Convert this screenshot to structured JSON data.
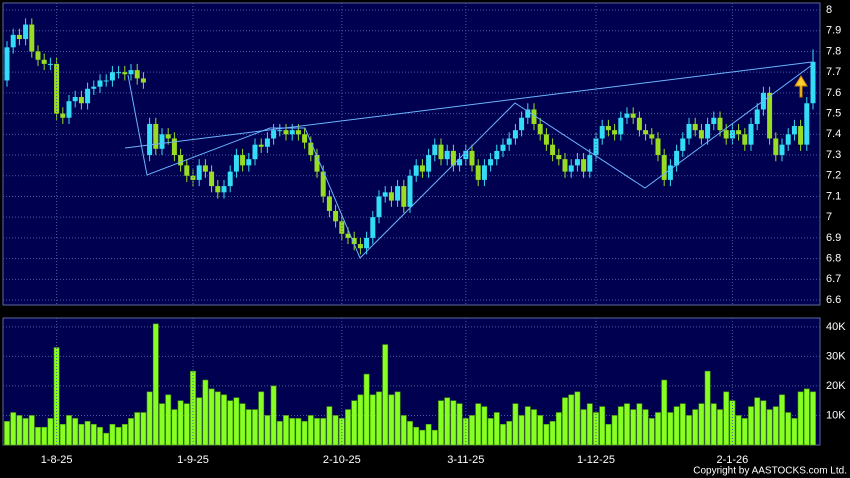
{
  "chart_data": [
    {
      "type": "candlestick",
      "categories": [
        null,
        null,
        null,
        null,
        null,
        null,
        null,
        null,
        "1-8-25",
        null,
        null,
        null,
        null,
        null,
        null,
        null,
        null,
        null,
        null,
        null,
        null,
        null,
        null,
        null,
        null,
        null,
        null,
        null,
        null,
        null,
        "1-9-25",
        null,
        null,
        null,
        null,
        null,
        null,
        null,
        null,
        null,
        null,
        null,
        null,
        null,
        null,
        null,
        null,
        null,
        null,
        null,
        null,
        null,
        null,
        null,
        "2-10-25",
        null,
        null,
        null,
        null,
        null,
        null,
        null,
        null,
        null,
        null,
        null,
        null,
        null,
        null,
        null,
        null,
        null,
        null,
        null,
        "3-11-25",
        null,
        null,
        null,
        null,
        null,
        null,
        null,
        null,
        null,
        null,
        null,
        null,
        null,
        null,
        null,
        null,
        null,
        null,
        null,
        null,
        "1-12-25",
        null,
        null,
        null,
        null,
        null,
        null,
        null,
        null,
        null,
        null,
        null,
        null,
        null,
        null,
        null,
        null,
        null,
        null,
        null,
        null,
        null,
        "2-1-26",
        null,
        null,
        null,
        null,
        null,
        null,
        null,
        null,
        null,
        null,
        null,
        null,
        null
      ],
      "open": [
        7.66,
        7.82,
        7.88,
        7.86,
        7.93,
        7.8,
        7.76,
        7.74,
        7.74,
        7.5,
        7.48,
        7.56,
        7.58,
        7.55,
        7.62,
        7.63,
        7.66,
        7.66,
        7.7,
        7.7,
        7.69,
        7.71,
        7.67,
        7.3,
        7.45,
        7.33,
        7.4,
        7.38,
        7.3,
        7.25,
        7.2,
        7.18,
        7.25,
        7.22,
        7.15,
        7.12,
        7.15,
        7.22,
        7.3,
        7.25,
        7.28,
        7.35,
        7.34,
        7.38,
        7.42,
        7.42,
        7.4,
        7.42,
        7.4,
        7.36,
        7.3,
        7.22,
        7.1,
        7.03,
        6.98,
        6.92,
        6.9,
        6.87,
        6.85,
        6.9,
        7.0,
        7.1,
        7.12,
        7.08,
        7.15,
        7.05,
        7.2,
        7.25,
        7.22,
        7.3,
        7.35,
        7.28,
        7.32,
        7.25,
        7.28,
        7.32,
        7.25,
        7.18,
        7.25,
        7.28,
        7.32,
        7.35,
        7.38,
        7.42,
        7.48,
        7.52,
        7.45,
        7.4,
        7.35,
        7.3,
        7.28,
        7.22,
        7.25,
        7.28,
        7.22,
        7.3,
        7.38,
        7.44,
        7.42,
        7.4,
        7.48,
        7.5,
        7.48,
        7.42,
        7.4,
        7.38,
        7.3,
        7.18,
        7.25,
        7.32,
        7.38,
        7.45,
        7.42,
        7.38,
        7.45,
        7.48,
        7.42,
        7.38,
        7.42,
        7.4,
        7.35,
        7.45,
        7.52,
        7.6,
        7.38,
        7.3,
        7.35,
        7.4,
        7.44,
        7.35,
        7.55
      ],
      "high": [
        7.85,
        7.91,
        7.91,
        7.96,
        7.96,
        7.83,
        7.79,
        7.77,
        7.77,
        7.53,
        7.59,
        7.61,
        7.61,
        7.65,
        7.66,
        7.69,
        7.69,
        7.73,
        7.73,
        7.73,
        7.74,
        7.74,
        7.7,
        7.48,
        7.48,
        7.43,
        7.43,
        7.41,
        7.33,
        7.28,
        7.23,
        7.28,
        7.28,
        7.25,
        7.18,
        7.18,
        7.25,
        7.33,
        7.33,
        7.31,
        7.38,
        7.38,
        7.41,
        7.45,
        7.45,
        7.45,
        7.45,
        7.45,
        7.43,
        7.39,
        7.33,
        7.25,
        7.13,
        7.06,
        7.01,
        6.95,
        6.93,
        6.9,
        6.93,
        7.03,
        7.13,
        7.15,
        7.15,
        7.18,
        7.18,
        7.23,
        7.28,
        7.28,
        7.33,
        7.38,
        7.38,
        7.35,
        7.35,
        7.31,
        7.35,
        7.35,
        7.28,
        7.28,
        7.31,
        7.35,
        7.38,
        7.41,
        7.45,
        7.51,
        7.55,
        7.55,
        7.48,
        7.43,
        7.38,
        7.33,
        7.31,
        7.28,
        7.31,
        7.31,
        7.33,
        7.41,
        7.47,
        7.47,
        7.45,
        7.51,
        7.53,
        7.53,
        7.51,
        7.45,
        7.43,
        7.41,
        7.33,
        7.28,
        7.35,
        7.41,
        7.48,
        7.48,
        7.45,
        7.48,
        7.51,
        7.51,
        7.45,
        7.45,
        7.45,
        7.43,
        7.48,
        7.55,
        7.63,
        7.63,
        7.41,
        7.38,
        7.43,
        7.47,
        7.47,
        7.58,
        7.81
      ],
      "low": [
        7.63,
        7.79,
        7.83,
        7.83,
        7.77,
        7.73,
        7.71,
        7.71,
        7.47,
        7.45,
        7.45,
        7.53,
        7.52,
        7.52,
        7.59,
        7.6,
        7.63,
        7.63,
        7.67,
        7.66,
        7.66,
        7.64,
        7.62,
        7.27,
        7.3,
        7.3,
        7.35,
        7.27,
        7.22,
        7.17,
        7.15,
        7.15,
        7.19,
        7.12,
        7.09,
        7.09,
        7.12,
        7.19,
        7.22,
        7.22,
        7.25,
        7.31,
        7.31,
        7.35,
        7.39,
        7.37,
        7.37,
        7.37,
        7.33,
        7.27,
        7.19,
        7.07,
        7.0,
        6.95,
        6.89,
        6.87,
        6.84,
        6.82,
        6.82,
        6.87,
        6.97,
        7.07,
        7.05,
        7.05,
        7.02,
        7.02,
        7.17,
        7.19,
        7.19,
        7.27,
        7.25,
        7.25,
        7.22,
        7.22,
        7.25,
        7.22,
        7.15,
        7.15,
        7.22,
        7.25,
        7.29,
        7.32,
        7.35,
        7.39,
        7.45,
        7.42,
        7.37,
        7.32,
        7.27,
        7.25,
        7.19,
        7.19,
        7.22,
        7.19,
        7.19,
        7.27,
        7.35,
        7.39,
        7.37,
        7.37,
        7.45,
        7.45,
        7.39,
        7.37,
        7.35,
        7.27,
        7.15,
        7.15,
        7.22,
        7.29,
        7.35,
        7.39,
        7.35,
        7.35,
        7.42,
        7.39,
        7.35,
        7.35,
        7.37,
        7.32,
        7.32,
        7.42,
        7.49,
        7.35,
        7.27,
        7.27,
        7.32,
        7.37,
        7.32,
        7.32,
        7.52
      ],
      "close": [
        7.82,
        7.88,
        7.86,
        7.93,
        7.8,
        7.76,
        7.74,
        7.74,
        7.5,
        7.48,
        7.56,
        7.58,
        7.55,
        7.62,
        7.63,
        7.66,
        7.66,
        7.7,
        7.7,
        7.69,
        7.71,
        7.67,
        7.65,
        7.45,
        7.33,
        7.4,
        7.38,
        7.3,
        7.25,
        7.2,
        7.18,
        7.25,
        7.22,
        7.15,
        7.12,
        7.15,
        7.22,
        7.3,
        7.25,
        7.28,
        7.35,
        7.34,
        7.38,
        7.42,
        7.42,
        7.4,
        7.42,
        7.4,
        7.36,
        7.3,
        7.22,
        7.1,
        7.03,
        6.98,
        6.92,
        6.9,
        6.87,
        6.85,
        6.9,
        7.0,
        7.1,
        7.12,
        7.08,
        7.15,
        7.05,
        7.2,
        7.25,
        7.22,
        7.3,
        7.35,
        7.28,
        7.32,
        7.25,
        7.28,
        7.32,
        7.25,
        7.18,
        7.25,
        7.28,
        7.32,
        7.35,
        7.38,
        7.42,
        7.48,
        7.52,
        7.45,
        7.4,
        7.35,
        7.3,
        7.28,
        7.22,
        7.25,
        7.28,
        7.22,
        7.3,
        7.38,
        7.44,
        7.42,
        7.4,
        7.48,
        7.5,
        7.48,
        7.42,
        7.4,
        7.38,
        7.3,
        7.18,
        7.25,
        7.32,
        7.38,
        7.45,
        7.42,
        7.38,
        7.45,
        7.48,
        7.42,
        7.38,
        7.42,
        7.4,
        7.35,
        7.45,
        7.52,
        7.6,
        7.38,
        7.3,
        7.35,
        7.4,
        7.44,
        7.35,
        7.55,
        7.75
      ],
      "up_color": "#33ddf5",
      "down_color": "#99dd22",
      "ylim": [
        6.576,
        8.034
      ],
      "yticks": [
        6.6,
        6.7,
        6.8,
        6.9,
        7,
        7.1,
        7.2,
        7.3,
        7.4,
        7.5,
        7.6,
        7.7,
        7.8,
        7.9,
        8
      ],
      "grid": true
    },
    {
      "type": "bar",
      "values": [
        8000,
        11000,
        10000,
        9000,
        10000,
        6000,
        6000,
        9000,
        33000,
        7000,
        10000,
        9000,
        7000,
        8000,
        7000,
        6000,
        4000,
        7000,
        6000,
        7000,
        9000,
        11000,
        11000,
        18000,
        41000,
        14000,
        17000,
        12000,
        15000,
        14000,
        25000,
        16000,
        22000,
        19000,
        18000,
        17000,
        15000,
        16000,
        14000,
        12000,
        12000,
        18000,
        10000,
        20000,
        8000,
        10000,
        9000,
        9000,
        8000,
        10000,
        9000,
        9000,
        13000,
        10000,
        9000,
        12000,
        15000,
        17000,
        24000,
        17000,
        18000,
        34000,
        17000,
        18000,
        10000,
        8000,
        6000,
        5000,
        7000,
        5000,
        15000,
        16000,
        15000,
        14000,
        9000,
        10000,
        14000,
        13000,
        9000,
        11000,
        7000,
        8000,
        14000,
        10000,
        13000,
        12000,
        10000,
        7000,
        8000,
        11000,
        16000,
        17000,
        18000,
        12000,
        14000,
        11000,
        13000,
        7000,
        10000,
        13000,
        14000,
        12000,
        14000,
        12000,
        9000,
        11000,
        22000,
        11000,
        13000,
        14000,
        10000,
        12000,
        14000,
        25000,
        14000,
        12000,
        18000,
        15000,
        10000,
        9000,
        13000,
        16000,
        15000,
        12000,
        13000,
        17000,
        11000,
        9000,
        18000,
        19000,
        18000
      ],
      "color": "#88ff22",
      "ylim": [
        0,
        43000
      ],
      "yticks": [
        {
          "value": 10000,
          "label": "10K"
        },
        {
          "value": 20000,
          "label": "20K"
        },
        {
          "value": 30000,
          "label": "30K"
        },
        {
          "value": 40000,
          "label": "40K"
        }
      ],
      "grid": true
    }
  ],
  "copyright": "Copyright by AASTOCKS.com Ltd."
}
